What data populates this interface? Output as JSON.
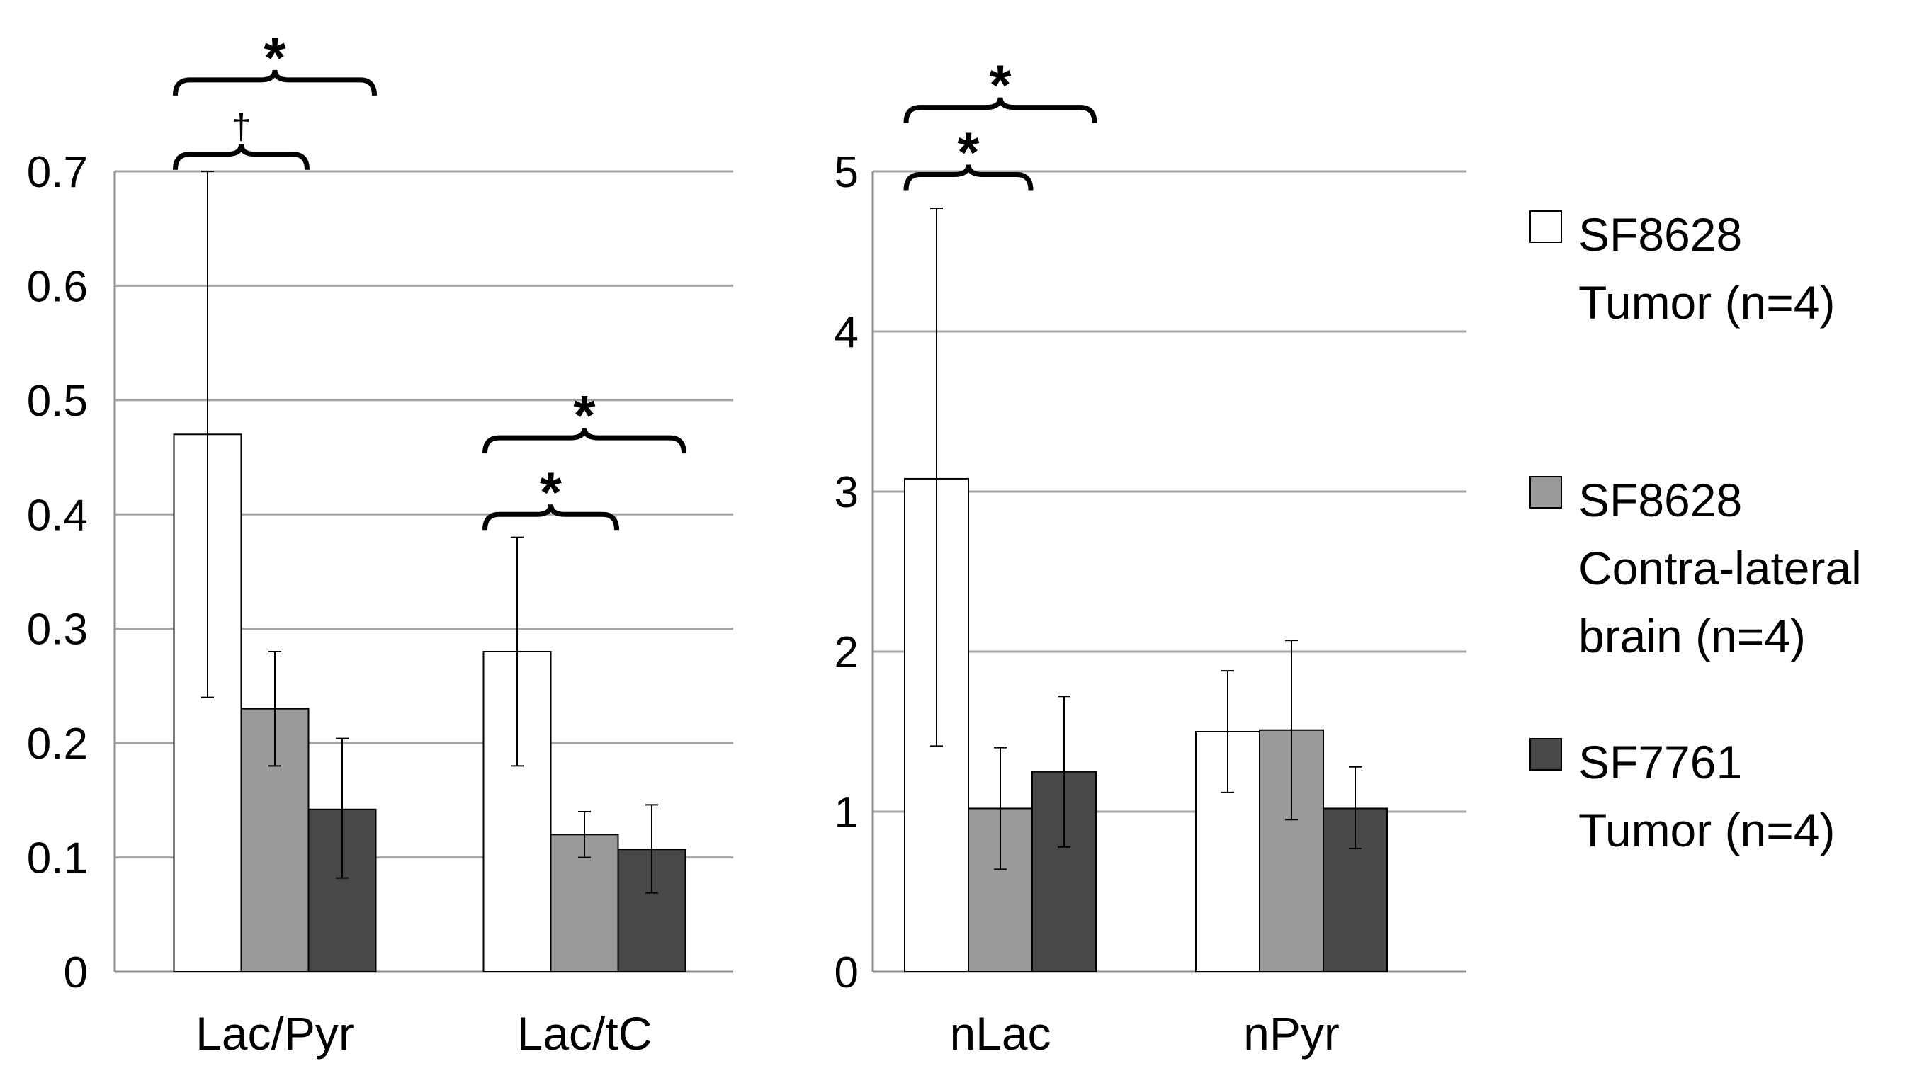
{
  "colors": {
    "tumor_8628": "#ffffff",
    "contra_8628": "#9a9a9a",
    "tumor_7761": "#484848",
    "grid": "#a6a6a6",
    "axis": "#8c8c8c",
    "border": "#000000"
  },
  "legend": {
    "items": [
      {
        "lines": [
          "SF8628",
          "Tumor (n=4)"
        ],
        "color_key": "tumor_8628"
      },
      {
        "lines": [
          "SF8628",
          "Contra-lateral",
          "brain (n=4)"
        ],
        "color_key": "contra_8628"
      },
      {
        "lines": [
          "SF7761",
          "Tumor (n=4)"
        ],
        "color_key": "tumor_7761"
      }
    ]
  },
  "chart_data": [
    {
      "type": "bar",
      "categories": [
        "Lac/Pyr",
        "Lac/tC"
      ],
      "ylim": [
        0,
        0.7
      ],
      "yticks": [
        "0",
        "0.1",
        "0.2",
        "0.3",
        "0.4",
        "0.5",
        "0.6",
        "0.7"
      ],
      "grid": true,
      "series": [
        {
          "name": "SF8628 Tumor (n=4)",
          "values": [
            0.47,
            0.28
          ],
          "err_low": [
            0.24,
            0.18
          ],
          "err_high": [
            0.7,
            0.38
          ]
        },
        {
          "name": "SF8628 Contra-lateral brain (n=4)",
          "values": [
            0.23,
            0.12
          ],
          "err_low": [
            0.18,
            0.1
          ],
          "err_high": [
            0.28,
            0.14
          ]
        },
        {
          "name": "SF7761 Tumor (n=4)",
          "values": [
            0.142,
            0.107
          ],
          "err_low": [
            0.082,
            0.069
          ],
          "err_high": [
            0.204,
            0.146
          ]
        }
      ],
      "annotations": [
        {
          "category": 0,
          "from": 0,
          "to": 2,
          "symbol": "*",
          "level": 0.78
        },
        {
          "category": 0,
          "from": 0,
          "to": 1,
          "symbol": "†",
          "level": 0.715
        },
        {
          "category": 1,
          "from": 0,
          "to": 2,
          "symbol": "*",
          "level": 0.467
        },
        {
          "category": 1,
          "from": 0,
          "to": 1,
          "symbol": "*",
          "level": 0.4
        }
      ]
    },
    {
      "type": "bar",
      "categories": [
        "nLac",
        "nPyr"
      ],
      "ylim": [
        0,
        5
      ],
      "yticks": [
        "0",
        "1",
        "2",
        "3",
        "4",
        "5"
      ],
      "grid": true,
      "series": [
        {
          "name": "SF8628 Tumor (n=4)",
          "values": [
            3.08,
            1.5
          ],
          "err_low": [
            1.41,
            1.12
          ],
          "err_high": [
            4.77,
            1.88
          ]
        },
        {
          "name": "SF8628 Contra-lateral brain (n=4)",
          "values": [
            1.02,
            1.51
          ],
          "err_low": [
            0.64,
            0.95
          ],
          "err_high": [
            1.4,
            2.07
          ]
        },
        {
          "name": "SF7761 Tumor (n=4)",
          "values": [
            1.25,
            1.02
          ],
          "err_low": [
            0.78,
            0.77
          ],
          "err_high": [
            1.72,
            1.28
          ]
        }
      ],
      "annotations": [
        {
          "category": 0,
          "from": 0,
          "to": 2,
          "symbol": "*",
          "level": 5.4
        },
        {
          "category": 0,
          "from": 0,
          "to": 1,
          "symbol": "*",
          "level": 4.98
        }
      ]
    }
  ]
}
